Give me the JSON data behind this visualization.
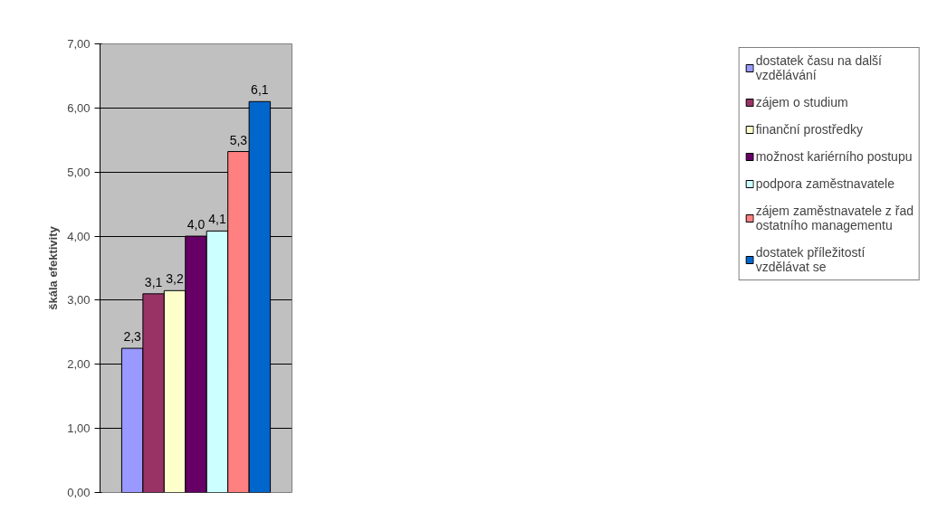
{
  "chart_data": {
    "type": "bar",
    "ylabel": "škála efektivity",
    "categories": [
      null
    ],
    "series": [
      {
        "name": "dostatek času na další vzdělávání",
        "color": "#9999ff",
        "values": [
          2.25
        ],
        "value_labels": [
          "2,3"
        ]
      },
      {
        "name": "zájem o studium",
        "color": "#993366",
        "values": [
          3.1
        ],
        "value_labels": [
          "3,1"
        ]
      },
      {
        "name": "finanční prostředky",
        "color": "#ffffcc",
        "values": [
          3.15
        ],
        "value_labels": [
          "3,2"
        ]
      },
      {
        "name": "možnost kariérního postupu",
        "color": "#660066",
        "values": [
          4.0
        ],
        "value_labels": [
          "4,0"
        ]
      },
      {
        "name": "podpora zaměstnavatele",
        "color": "#ccffff",
        "values": [
          4.08
        ],
        "value_labels": [
          "4,1"
        ]
      },
      {
        "name": "zájem zaměstnavatele z řad ostatního managementu",
        "color": "#ff8080",
        "values": [
          5.32
        ],
        "value_labels": [
          "5,3"
        ]
      },
      {
        "name": "dostatek příležitostí vzdělávat se",
        "color": "#0066cc",
        "values": [
          6.1
        ],
        "value_labels": [
          "6,1"
        ]
      }
    ],
    "ylim": [
      0,
      7
    ],
    "yticks": [
      {
        "value": 0,
        "label": "0,00"
      },
      {
        "value": 1,
        "label": "1,00"
      },
      {
        "value": 2,
        "label": "2,00"
      },
      {
        "value": 3,
        "label": "3,00"
      },
      {
        "value": 4,
        "label": "4,00"
      },
      {
        "value": 5,
        "label": "5,00"
      },
      {
        "value": 6,
        "label": "6,00"
      },
      {
        "value": 7,
        "label": "7,00"
      }
    ],
    "grid": "y",
    "legend": "right"
  }
}
